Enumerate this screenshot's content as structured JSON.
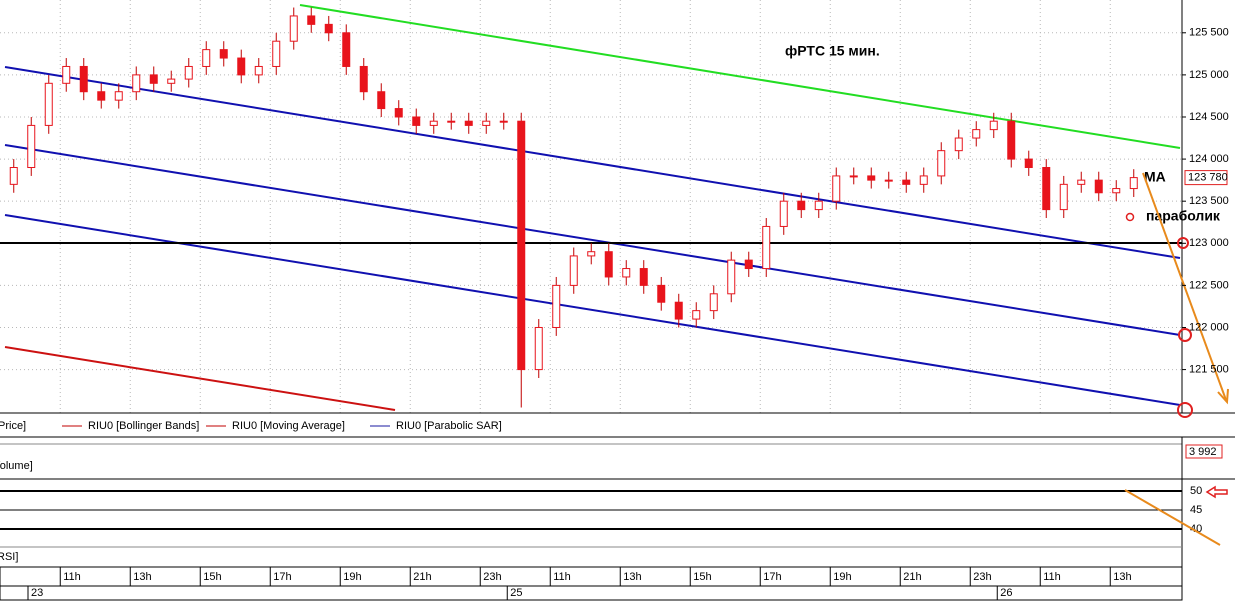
{
  "chart_data": {
    "type": "candlestick",
    "title": "фРТС   15 мин.",
    "annotations": [
      "MA",
      "параболик"
    ],
    "legend": [
      {
        "name": "Price]"
      },
      {
        "name": "RIU0 [Bollinger Bands]",
        "color": "#c00000"
      },
      {
        "name": "RIU0 [Moving Average]",
        "color": "#c00000"
      },
      {
        "name": "RIU0 [Parabolic SAR]",
        "color": "#1a1aa0"
      }
    ],
    "up_color": "#ffffff",
    "down_color": "#e8141c",
    "wick_color": "#c00000",
    "grid": true,
    "ylim": [
      121020,
      125830
    ],
    "yticks": [
      {
        "value": 121500,
        "label": "121 500"
      },
      {
        "value": 122000,
        "label": "122 000"
      },
      {
        "value": 122500,
        "label": "122 500"
      },
      {
        "value": 123000,
        "label": "123 000"
      },
      {
        "value": 123500,
        "label": "123 500"
      },
      {
        "value": 124000,
        "label": "124 000"
      },
      {
        "value": 124500,
        "label": "124 500"
      },
      {
        "value": 125000,
        "label": "125 000"
      },
      {
        "value": 125500,
        "label": "125 500"
      }
    ],
    "last_value_label": "123 780",
    "categories": [
      null,
      null,
      null,
      "11h",
      null,
      null,
      null,
      "13h",
      null,
      null,
      null,
      "15h",
      null,
      null,
      null,
      "17h",
      null,
      null,
      null,
      "19h",
      null,
      null,
      null,
      "21h",
      null,
      null,
      null,
      "23h",
      null,
      null,
      null,
      "11h",
      null,
      null,
      null,
      "13h",
      null,
      null,
      null,
      "15h",
      null,
      null,
      null,
      "17h",
      null,
      null,
      null,
      "19h",
      null,
      null,
      null,
      "21h",
      null,
      null,
      null,
      "23h",
      null,
      null,
      null,
      "11h",
      null,
      null,
      null,
      "13h",
      null
    ],
    "days": [
      "23",
      null,
      null,
      null,
      null,
      null,
      null,
      null,
      null,
      null,
      null,
      null,
      null,
      null,
      null,
      null,
      null,
      null,
      null,
      null,
      null,
      null,
      null,
      null,
      null,
      null,
      null,
      null,
      null,
      "25",
      null,
      null,
      null,
      null,
      null,
      null,
      null,
      null,
      null,
      null,
      null,
      null,
      null,
      null,
      null,
      null,
      null,
      null,
      null,
      null,
      null,
      null,
      null,
      null,
      null,
      null,
      null,
      "26",
      null,
      null,
      null,
      null,
      null,
      null,
      null
    ],
    "open": [
      123700,
      123900,
      124400,
      124900,
      125100,
      124800,
      124700,
      124800,
      125000,
      124900,
      124950,
      125100,
      125300,
      125200,
      125000,
      125100,
      125400,
      125700,
      125600,
      125500,
      125100,
      124800,
      124600,
      124500,
      124400,
      124450,
      124450,
      124400,
      124450,
      124450,
      121500,
      122000,
      122500,
      122850,
      122900,
      122600,
      122700,
      122500,
      122300,
      122100,
      122200,
      122400,
      122800,
      122700,
      123200,
      123500,
      123400,
      123500,
      123800,
      123800,
      123750,
      123750,
      123700,
      123800,
      124100,
      124250,
      124350,
      124450,
      124000,
      123900,
      123400,
      123700,
      123750,
      123600,
      123650
    ],
    "high": [
      124000,
      124500,
      125000,
      125200,
      125200,
      124900,
      124900,
      125100,
      125100,
      125050,
      125200,
      125400,
      125400,
      125300,
      125200,
      125500,
      125800,
      125800,
      125700,
      125600,
      125200,
      124900,
      124700,
      124600,
      124550,
      124550,
      124550,
      124550,
      124550,
      124550,
      122100,
      122600,
      122950,
      123000,
      123000,
      122800,
      122800,
      122600,
      122400,
      122300,
      122500,
      122900,
      122900,
      123300,
      123600,
      123600,
      123600,
      123900,
      123900,
      123900,
      123850,
      123850,
      123900,
      124200,
      124350,
      124450,
      124550,
      124550,
      124100,
      124000,
      123800,
      123850,
      123850,
      123750,
      123880
    ],
    "low": [
      123600,
      123800,
      124300,
      124800,
      124700,
      124600,
      124600,
      124700,
      124800,
      124800,
      124850,
      125000,
      125100,
      124900,
      124900,
      125000,
      125300,
      125500,
      125400,
      125000,
      124700,
      124500,
      124400,
      124300,
      124300,
      124350,
      124300,
      124300,
      124350,
      121050,
      121400,
      121900,
      122400,
      122750,
      122500,
      122500,
      122400,
      122200,
      122000,
      122000,
      122100,
      122300,
      122600,
      122600,
      123100,
      123300,
      123300,
      123400,
      123700,
      123650,
      123650,
      123600,
      123600,
      123700,
      124000,
      124150,
      124250,
      123900,
      123800,
      123300,
      123300,
      123600,
      123500,
      123500,
      123550
    ],
    "close": [
      123900,
      124400,
      124900,
      125100,
      124800,
      124700,
      124800,
      125000,
      124900,
      124950,
      125100,
      125300,
      125200,
      125000,
      125100,
      125400,
      125700,
      125600,
      125500,
      125100,
      124800,
      124600,
      124500,
      124400,
      124450,
      124450,
      124400,
      124450,
      124450,
      121500,
      122000,
      122500,
      122850,
      122900,
      122600,
      122700,
      122500,
      122300,
      122100,
      122200,
      122400,
      122800,
      122700,
      123200,
      123500,
      123400,
      123500,
      123800,
      123800,
      123750,
      123750,
      123700,
      123800,
      124100,
      124250,
      124350,
      124450,
      124000,
      123900,
      123400,
      123700,
      123750,
      123600,
      123650,
      123780
    ],
    "volume": {
      "name": "Volume]",
      "last_value_label": "3 992"
    },
    "rsi": {
      "name": "RSI]",
      "ylim": [
        35.8,
        52.1
      ],
      "yticks": [
        40,
        45,
        50
      ]
    }
  }
}
